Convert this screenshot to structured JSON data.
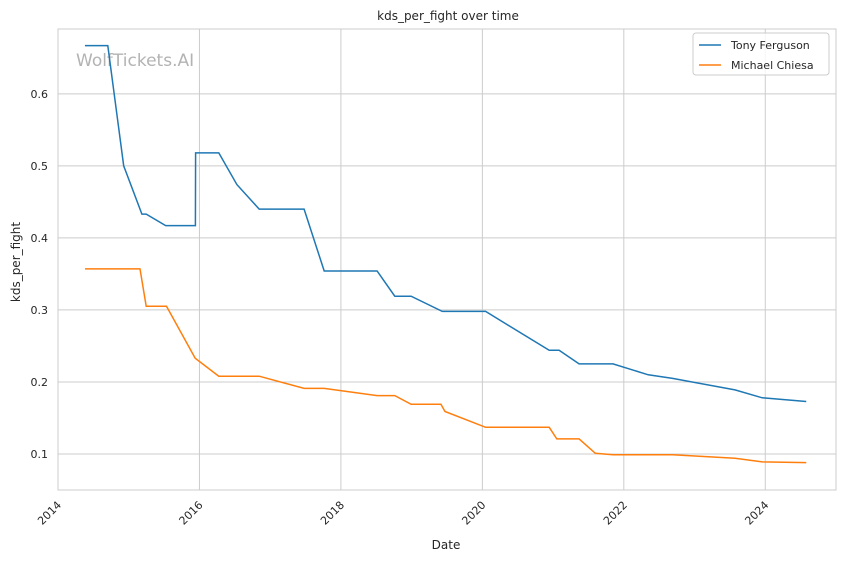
{
  "chart_data": {
    "type": "line",
    "title": "kds_per_fight over time",
    "xlabel": "Date",
    "ylabel": "kds_per_fight",
    "watermark": "WolfTickets.AI",
    "grid": true,
    "legend_position": "top-right",
    "x_ticks": [
      "2014",
      "2016",
      "2018",
      "2020",
      "2022",
      "2024"
    ],
    "y_ticks": [
      "0.1",
      "0.2",
      "0.3",
      "0.4",
      "0.5",
      "0.6"
    ],
    "xlim": [
      "2014-01-01",
      "2025-01-01"
    ],
    "ylim": [
      0.05,
      0.69
    ],
    "series": [
      {
        "name": "Tony Ferguson",
        "color": "#1f77b4",
        "points": [
          [
            "2014-05-24",
            0.667
          ],
          [
            "2014-09-15",
            0.667
          ],
          [
            "2014-12-06",
            0.5
          ],
          [
            "2015-03-10",
            0.433
          ],
          [
            "2015-04-01",
            0.433
          ],
          [
            "2015-07-11",
            0.417
          ],
          [
            "2015-12-11",
            0.417
          ],
          [
            "2015-12-12",
            0.518
          ],
          [
            "2016-04-10",
            0.518
          ],
          [
            "2016-07-13",
            0.474
          ],
          [
            "2016-11-05",
            0.44
          ],
          [
            "2017-06-25",
            0.44
          ],
          [
            "2017-10-07",
            0.354
          ],
          [
            "2018-07-07",
            0.354
          ],
          [
            "2018-10-06",
            0.319
          ],
          [
            "2018-12-29",
            0.319
          ],
          [
            "2019-06-08",
            0.298
          ],
          [
            "2020-01-18",
            0.298
          ],
          [
            "2020-12-12",
            0.244
          ],
          [
            "2021-02-01",
            0.244
          ],
          [
            "2021-05-15",
            0.225
          ],
          [
            "2021-11-06",
            0.225
          ],
          [
            "2022-05-07",
            0.21
          ],
          [
            "2022-09-10",
            0.205
          ],
          [
            "2023-07-29",
            0.189
          ],
          [
            "2023-12-16",
            0.178
          ],
          [
            "2024-07-27",
            0.173
          ]
        ]
      },
      {
        "name": "Michael Chiesa",
        "color": "#ff7f0e",
        "points": [
          [
            "2014-05-24",
            0.357
          ],
          [
            "2015-02-28",
            0.357
          ],
          [
            "2015-04-01",
            0.305
          ],
          [
            "2015-07-15",
            0.305
          ],
          [
            "2015-12-10",
            0.233
          ],
          [
            "2016-04-10",
            0.208
          ],
          [
            "2016-11-05",
            0.208
          ],
          [
            "2017-06-25",
            0.191
          ],
          [
            "2017-10-07",
            0.191
          ],
          [
            "2018-07-07",
            0.181
          ],
          [
            "2018-10-06",
            0.181
          ],
          [
            "2018-12-29",
            0.169
          ],
          [
            "2019-06-01",
            0.169
          ],
          [
            "2019-06-22",
            0.159
          ],
          [
            "2020-01-18",
            0.137
          ],
          [
            "2020-12-12",
            0.137
          ],
          [
            "2021-01-20",
            0.121
          ],
          [
            "2021-05-15",
            0.121
          ],
          [
            "2021-08-07",
            0.101
          ],
          [
            "2021-11-06",
            0.099
          ],
          [
            "2022-09-10",
            0.099
          ],
          [
            "2023-07-29",
            0.094
          ],
          [
            "2023-12-16",
            0.089
          ],
          [
            "2024-07-27",
            0.088
          ]
        ]
      }
    ]
  }
}
